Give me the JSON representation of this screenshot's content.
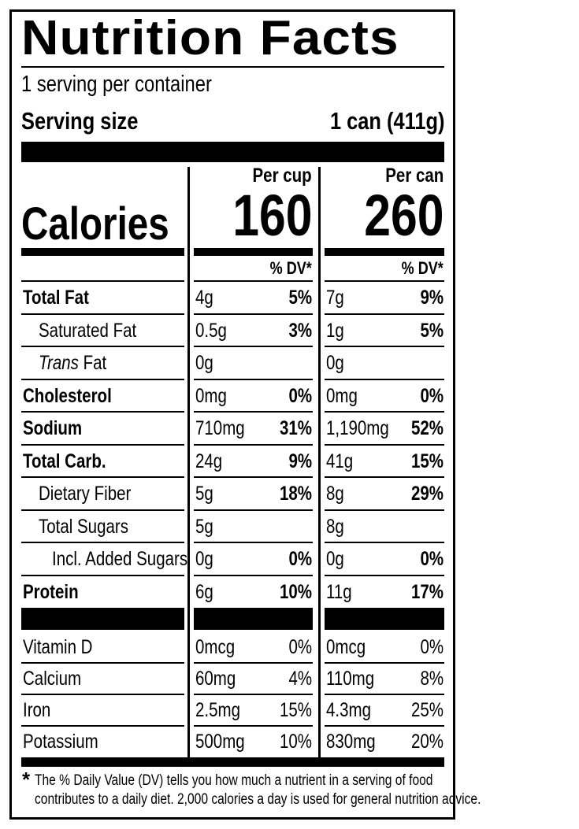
{
  "title": "Nutrition Facts",
  "servings_per_container": "1 serving per container",
  "serving_size": {
    "label": "Serving size",
    "value": "1 can (411g)"
  },
  "calories": {
    "label": "Calories",
    "per_cup": {
      "heading": "Per cup",
      "value": "160"
    },
    "per_can": {
      "heading": "Per can",
      "value": "260"
    }
  },
  "dv_header": "% DV*",
  "nutrients": [
    {
      "name": "Total Fat",
      "bold": true,
      "indent": 0,
      "cup_amount": "4g",
      "cup_dv": "5%",
      "can_amount": "7g",
      "can_dv": "9%"
    },
    {
      "name": "Saturated Fat",
      "bold": false,
      "indent": 1,
      "cup_amount": "0.5g",
      "cup_dv": "3%",
      "can_amount": "1g",
      "can_dv": "5%"
    },
    {
      "name_prefix": "Trans",
      "name": " Fat",
      "bold": false,
      "indent": 1,
      "cup_amount": "0g",
      "cup_dv": "",
      "can_amount": "0g",
      "can_dv": ""
    },
    {
      "name": "Cholesterol",
      "bold": true,
      "indent": 0,
      "cup_amount": "0mg",
      "cup_dv": "0%",
      "can_amount": "0mg",
      "can_dv": "0%"
    },
    {
      "name": "Sodium",
      "bold": true,
      "indent": 0,
      "cup_amount": "710mg",
      "cup_dv": "31%",
      "can_amount": "1,190mg",
      "can_dv": "52%"
    },
    {
      "name": "Total Carb.",
      "bold": true,
      "indent": 0,
      "cup_amount": "24g",
      "cup_dv": "9%",
      "can_amount": "41g",
      "can_dv": "15%"
    },
    {
      "name": "Dietary Fiber",
      "bold": false,
      "indent": 1,
      "cup_amount": "5g",
      "cup_dv": "18%",
      "can_amount": "8g",
      "can_dv": "29%"
    },
    {
      "name": "Total Sugars",
      "bold": false,
      "indent": 1,
      "cup_amount": "5g",
      "cup_dv": "",
      "can_amount": "8g",
      "can_dv": ""
    },
    {
      "name": "Incl. Added Sugars",
      "bold": false,
      "indent": 2,
      "cup_amount": "0g",
      "cup_dv": "0%",
      "can_amount": "0g",
      "can_dv": "0%"
    },
    {
      "name": "Protein",
      "bold": true,
      "indent": 0,
      "cup_amount": "6g",
      "cup_dv": "10%",
      "can_amount": "11g",
      "can_dv": "17%"
    }
  ],
  "vitamins": [
    {
      "name": "Vitamin D",
      "cup_amount": "0mcg",
      "cup_dv": "0%",
      "can_amount": "0mcg",
      "can_dv": "0%"
    },
    {
      "name": "Calcium",
      "cup_amount": "60mg",
      "cup_dv": "4%",
      "can_amount": "110mg",
      "can_dv": "8%"
    },
    {
      "name": "Iron",
      "cup_amount": "2.5mg",
      "cup_dv": "15%",
      "can_amount": "4.3mg",
      "can_dv": "25%"
    },
    {
      "name": "Potassium",
      "cup_amount": "500mg",
      "cup_dv": "10%",
      "can_amount": "830mg",
      "can_dv": "20%"
    }
  ],
  "footnote": {
    "asterisk": "*",
    "line1": "The % Daily Value (DV) tells you how much a nutrient in a serving of food",
    "line2": "contributes to a daily diet. 2,000 calories a day is used for general nutrition advice."
  }
}
